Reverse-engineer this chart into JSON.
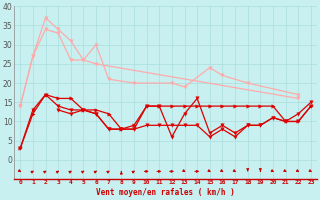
{
  "title": "",
  "xlabel": "Vent moyen/en rafales ( km/h )",
  "bg_color": "#c8f0f0",
  "grid_color": "#aadddd",
  "xlim": [
    -0.5,
    23.5
  ],
  "ylim": [
    0,
    40
  ],
  "yticks": [
    0,
    5,
    10,
    15,
    20,
    25,
    30,
    35,
    40
  ],
  "xticks": [
    0,
    1,
    2,
    3,
    4,
    5,
    6,
    7,
    8,
    9,
    10,
    11,
    12,
    13,
    14,
    15,
    16,
    17,
    18,
    19,
    20,
    21,
    22,
    23
  ],
  "series": [
    {
      "x": [
        0,
        1,
        2,
        3,
        4,
        5,
        6,
        7,
        9,
        12,
        13,
        15,
        16,
        18,
        22
      ],
      "y": [
        14,
        27,
        37,
        34,
        31,
        26,
        30,
        21,
        20,
        20,
        19,
        24,
        22,
        20,
        17
      ],
      "color": "#ffaaaa",
      "marker": "v",
      "markersize": 2.5,
      "linewidth": 0.9
    },
    {
      "x": [
        0,
        1,
        2,
        3,
        4,
        5,
        6,
        22
      ],
      "y": [
        14,
        27,
        34,
        33,
        26,
        26,
        25,
        16
      ],
      "color": "#ffaaaa",
      "marker": "v",
      "markersize": 2.5,
      "linewidth": 0.9
    },
    {
      "x": [
        0,
        1,
        2,
        3,
        4,
        5,
        6,
        7,
        8,
        9,
        10,
        11,
        12,
        13,
        14,
        15,
        16,
        17,
        18,
        19,
        20,
        21,
        22,
        23
      ],
      "y": [
        3,
        13,
        17,
        14,
        13,
        13,
        12,
        8,
        8,
        8,
        14,
        14,
        6,
        12,
        16,
        7,
        9,
        7,
        9,
        9,
        11,
        10,
        12,
        15
      ],
      "color": "#dd0000",
      "marker": "v",
      "markersize": 2.5,
      "linewidth": 0.9
    },
    {
      "x": [
        0,
        1,
        2,
        3,
        4,
        5,
        6,
        7,
        8,
        9,
        10,
        11,
        12,
        13,
        14,
        15,
        16,
        17,
        18,
        19,
        20,
        21,
        22,
        23
      ],
      "y": [
        3,
        12,
        17,
        16,
        16,
        13,
        13,
        12,
        8,
        9,
        14,
        14,
        14,
        14,
        14,
        14,
        14,
        14,
        14,
        14,
        14,
        10,
        10,
        14
      ],
      "color": "#dd0000",
      "marker": ">",
      "markersize": 2.5,
      "linewidth": 0.9
    },
    {
      "x": [
        3,
        4,
        5,
        6,
        7,
        8,
        9,
        10,
        11,
        12,
        13,
        14,
        15,
        16,
        17,
        18,
        19,
        20,
        21,
        22,
        23
      ],
      "y": [
        13,
        12,
        13,
        12,
        8,
        8,
        8,
        9,
        9,
        9,
        9,
        9,
        6,
        8,
        6,
        9,
        9,
        11,
        10,
        10,
        14
      ],
      "color": "#dd0000",
      "marker": "v",
      "markersize": 2.5,
      "linewidth": 0.9
    }
  ],
  "wind_arrows_x": [
    0,
    1,
    2,
    3,
    4,
    5,
    6,
    7,
    8,
    9,
    10,
    11,
    12,
    13,
    14,
    15,
    16,
    17,
    18,
    19,
    20,
    21,
    22,
    23
  ],
  "wind_directions_deg": [
    45,
    135,
    135,
    135,
    135,
    135,
    135,
    135,
    180,
    135,
    90,
    90,
    90,
    45,
    90,
    45,
    45,
    45,
    0,
    0,
    45,
    45,
    45,
    45
  ]
}
